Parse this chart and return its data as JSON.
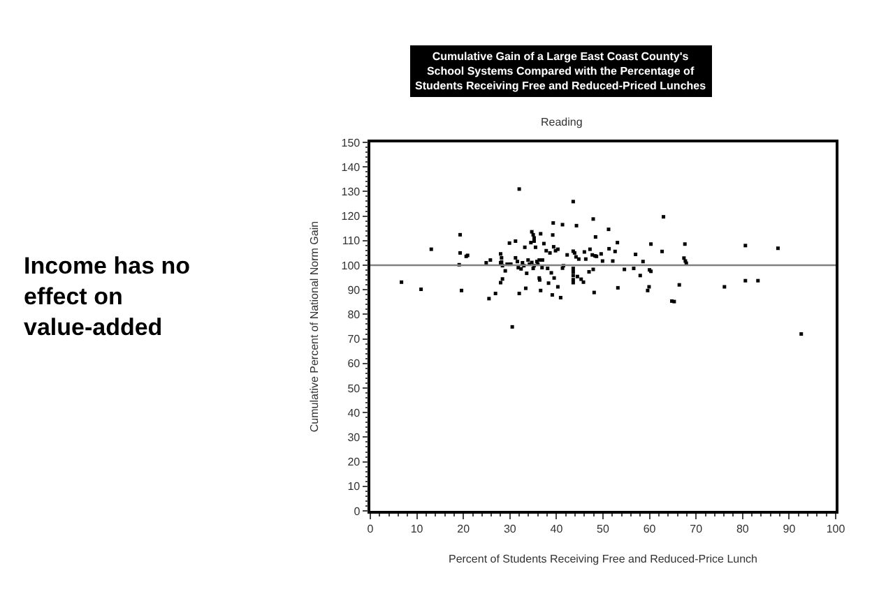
{
  "chart_data": {
    "type": "scatter",
    "title": "Cumulative Gain of a Large East Coast County's\nSchool Systems Compared with the Percentage of\nStudents Receiving Free and Reduced-Priced Lunches",
    "subtitle": "Reading",
    "xlabel": "Percent of Students Receiving Free and Reduced-Price Lunch",
    "ylabel": "Cumulative Percent of National Norm Gain",
    "annotations": [
      "Income has no\neffect on\nvalue-added"
    ],
    "x": [
      6.7,
      10.9,
      13.1,
      19.3,
      19.3,
      19.1,
      19.6,
      20.6,
      20.9,
      24.9,
      25.5,
      25.8,
      26.9,
      28,
      28.2,
      28,
      28.2,
      28.4,
      28,
      28.4,
      29,
      29.4,
      30,
      30.2,
      29.9,
      30.5,
      31.2,
      31.2,
      31.6,
      31.8,
      32,
      32,
      32.4,
      32.7,
      33,
      33.2,
      33.4,
      33.6,
      33.9,
      34.2,
      34.5,
      34.7,
      35,
      35.2,
      35.2,
      34.7,
      35,
      35.2,
      35.5,
      35.8,
      36,
      36.3,
      36.3,
      36.4,
      36.6,
      36.6,
      36.9,
      37,
      37.3,
      37.8,
      38.1,
      38.3,
      38.6,
      38.9,
      39.1,
      39.2,
      39.3,
      39.4,
      39.8,
      40.3,
      39.5,
      40.3,
      40.9,
      41.3,
      41.3,
      41.5,
      42.3,
      43.6,
      43.6,
      43.9,
      44.2,
      43.6,
      43.6,
      43.6,
      43.6,
      43.6,
      44.3,
      44.5,
      44.8,
      45.3,
      45.8,
      46,
      46.3,
      47,
      47.2,
      47.7,
      48.3,
      47.9,
      47.9,
      48.1,
      48.4,
      48.6,
      49.6,
      49.9,
      51.2,
      51.3,
      52.1,
      52.6,
      53.1,
      53.2,
      54.6,
      56.6,
      57,
      58,
      58.6,
      59.6,
      59.9,
      60,
      60.3,
      60.3,
      62.7,
      63,
      64.8,
      65.3,
      66.4,
      67.4,
      67.6,
      67.7,
      67.9,
      76.1,
      80.6,
      80.6,
      83.3,
      87.6,
      92.6
    ],
    "values": [
      93.1,
      90.2,
      106.5,
      112.4,
      105,
      100.2,
      89.7,
      103.6,
      104,
      101,
      86.4,
      102.1,
      88.5,
      101,
      101.3,
      104.6,
      103,
      99.8,
      92.9,
      94.4,
      97.7,
      100.4,
      100.4,
      100.4,
      109,
      74.9,
      109.8,
      103,
      101.5,
      99,
      131,
      88.5,
      98.5,
      101,
      99.8,
      107.3,
      90.6,
      96.7,
      102.1,
      100.4,
      109.2,
      113.6,
      112.4,
      111.1,
      109.8,
      101.1,
      98.7,
      99.8,
      107.3,
      101.5,
      100.4,
      102.1,
      94.8,
      94,
      112.8,
      89.7,
      99,
      102.1,
      108.8,
      105.9,
      98.7,
      92.7,
      105,
      96.9,
      87.9,
      112.3,
      117.2,
      107.5,
      105.9,
      106.5,
      94.8,
      91.2,
      86.8,
      116.5,
      98.8,
      99.8,
      104.2,
      125.9,
      105.7,
      105,
      103.4,
      98.7,
      97.3,
      95.8,
      94.1,
      92.9,
      116.1,
      95.4,
      102.5,
      94.3,
      93.1,
      105.4,
      102.5,
      97.3,
      106.5,
      104.2,
      103.8,
      98.3,
      118.8,
      88.9,
      111.5,
      103.6,
      104.6,
      101.7,
      114.6,
      106.7,
      101.7,
      105.6,
      109.2,
      90.8,
      98.3,
      98.7,
      104.4,
      95.8,
      101.5,
      89.7,
      91.2,
      98.1,
      97.5,
      108.6,
      105.6,
      119.7,
      85.4,
      85.2,
      92,
      102.9,
      108.6,
      101.7,
      100.8,
      91.2,
      93.7,
      108,
      93.7,
      106.9,
      72
    ],
    "color": "#000000",
    "marker": "square",
    "xlim": [
      0,
      100
    ],
    "xticks": [
      0,
      10,
      20,
      30,
      40,
      50,
      60,
      70,
      80,
      90,
      100
    ],
    "ylim": [
      0,
      150
    ],
    "yticks": [
      0,
      10,
      20,
      30,
      40,
      50,
      60,
      70,
      80,
      90,
      100,
      110,
      120,
      130,
      140,
      150
    ],
    "ref_lines": [
      {
        "axis": "y",
        "value": 100,
        "color": "#808080"
      }
    ],
    "legend": false
  }
}
